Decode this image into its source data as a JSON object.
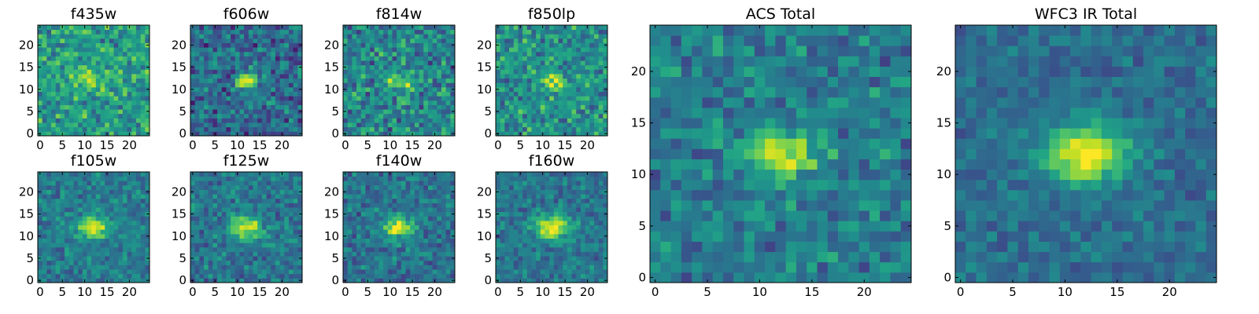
{
  "chart_data": {
    "type": "heatmap",
    "figure_description": "Image-stamp heatmaps (25x25 pixels each) in viridis colormap, one per photometric filter plus two stacked totals",
    "colormap": "viridis",
    "grid_size": [
      25,
      25
    ],
    "panels": [
      {
        "id": "f435w",
        "title": "f435w",
        "xticks": [
          "0",
          "5",
          "10",
          "15",
          "20"
        ],
        "yticks": [
          "0",
          "5",
          "10",
          "15",
          "20"
        ],
        "source_center": [
          12,
          12
        ],
        "source_radius": 3.5,
        "peak_strength": 0.25,
        "background_level": 0.55,
        "noise_level": 0.3,
        "seed": 11
      },
      {
        "id": "f606w",
        "title": "f606w",
        "xticks": [
          "0",
          "5",
          "10",
          "15",
          "20"
        ],
        "yticks": [
          "0",
          "5",
          "10",
          "15",
          "20"
        ],
        "source_center": [
          12,
          12
        ],
        "source_radius": 1.8,
        "peak_strength": 0.6,
        "background_level": 0.35,
        "noise_level": 0.3,
        "seed": 22
      },
      {
        "id": "f814w",
        "title": "f814w",
        "xticks": [
          "0",
          "5",
          "10",
          "15",
          "20"
        ],
        "yticks": [
          "0",
          "5",
          "10",
          "15",
          "20"
        ],
        "source_center": [
          12,
          12
        ],
        "source_radius": 2.0,
        "peak_strength": 0.45,
        "background_level": 0.45,
        "noise_level": 0.32,
        "seed": 33
      },
      {
        "id": "f850lp",
        "title": "f850lp",
        "xticks": [
          "0",
          "5",
          "10",
          "15",
          "20"
        ],
        "yticks": [
          "0",
          "5",
          "10",
          "15",
          "20"
        ],
        "source_center": [
          12,
          12
        ],
        "source_radius": 2.2,
        "peak_strength": 0.4,
        "background_level": 0.5,
        "noise_level": 0.3,
        "seed": 44
      },
      {
        "id": "f105w",
        "title": "f105w",
        "xticks": [
          "0",
          "5",
          "10",
          "15",
          "20"
        ],
        "yticks": [
          "0",
          "5",
          "10",
          "15",
          "20"
        ],
        "source_center": [
          12,
          12
        ],
        "source_radius": 2.5,
        "peak_strength": 0.55,
        "background_level": 0.42,
        "noise_level": 0.2,
        "seed": 55
      },
      {
        "id": "f125w",
        "title": "f125w",
        "xticks": [
          "0",
          "5",
          "10",
          "15",
          "20"
        ],
        "yticks": [
          "0",
          "5",
          "10",
          "15",
          "20"
        ],
        "source_center": [
          12,
          12
        ],
        "source_radius": 2.5,
        "peak_strength": 0.55,
        "background_level": 0.4,
        "noise_level": 0.22,
        "seed": 66
      },
      {
        "id": "f140w",
        "title": "f140w",
        "xticks": [
          "0",
          "5",
          "10",
          "15",
          "20"
        ],
        "yticks": [
          "0",
          "5",
          "10",
          "15",
          "20"
        ],
        "source_center": [
          12,
          12
        ],
        "source_radius": 2.5,
        "peak_strength": 0.55,
        "background_level": 0.38,
        "noise_level": 0.22,
        "seed": 77
      },
      {
        "id": "f160w",
        "title": "f160w",
        "xticks": [
          "0",
          "5",
          "10",
          "15",
          "20"
        ],
        "yticks": [
          "0",
          "5",
          "10",
          "15",
          "20"
        ],
        "source_center": [
          12,
          12
        ],
        "source_radius": 2.8,
        "peak_strength": 0.6,
        "background_level": 0.4,
        "noise_level": 0.2,
        "seed": 88
      },
      {
        "id": "acs-total",
        "title": "ACS Total",
        "xticks": [
          "0",
          "5",
          "10",
          "15",
          "20"
        ],
        "yticks": [
          "0",
          "5",
          "10",
          "15",
          "20"
        ],
        "source_center": [
          12,
          12
        ],
        "source_radius": 2.3,
        "peak_strength": 0.55,
        "background_level": 0.42,
        "noise_level": 0.24,
        "seed": 99
      },
      {
        "id": "wfc3-ir-total",
        "title": "WFC3 IR Total",
        "xticks": [
          "0",
          "5",
          "10",
          "15",
          "20"
        ],
        "yticks": [
          "0",
          "5",
          "10",
          "15",
          "20"
        ],
        "source_center": [
          12,
          12
        ],
        "source_radius": 3.0,
        "peak_strength": 0.62,
        "background_level": 0.36,
        "noise_level": 0.15,
        "seed": 111
      }
    ]
  }
}
